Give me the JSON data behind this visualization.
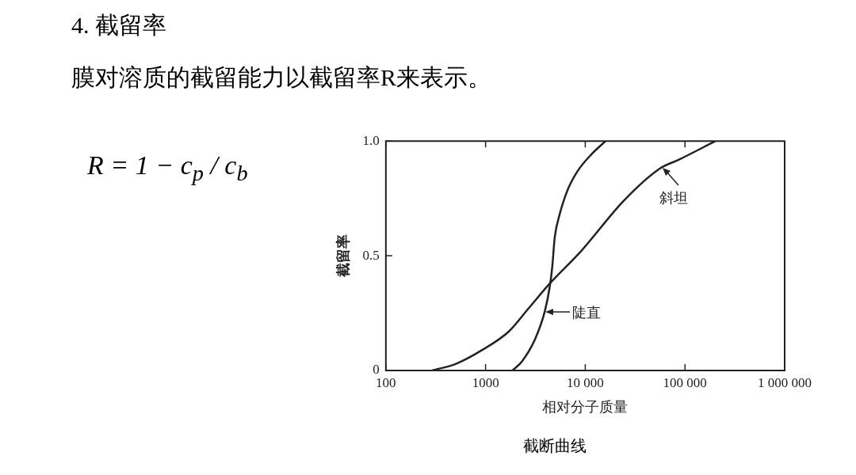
{
  "chart_data": {
    "type": "line",
    "title": "4. 截留率",
    "subtitle": "膜对溶质的截留能力以截留率R来表示。",
    "xlabel": "相对分子质量",
    "ylabel": "截留率",
    "log": "x",
    "xlim": [
      100,
      1000000
    ],
    "xticks": [
      100,
      1000,
      {
        "value": 10000,
        "label": "10 000"
      },
      {
        "value": 100000,
        "label": "100 000"
      },
      {
        "value": 1000000,
        "label": "1 000 000"
      }
    ],
    "ylim": [
      0,
      1
    ],
    "yticks": [
      0,
      0.5,
      {
        "value": 1,
        "label": "1.0"
      }
    ],
    "grid": false,
    "legend": false,
    "marker": "none",
    "line_style": "solid",
    "series": [
      {
        "color": "#222222",
        "x": [
          1860,
          2320,
          3160,
          3940,
          4420,
          4660,
          4940,
          5530,
          6700,
          8400,
          11400,
          16000
        ],
        "values": [
          0,
          0.04,
          0.14,
          0.26,
          0.37,
          0.45,
          0.58,
          0.68,
          0.79,
          0.87,
          0.94,
          1.0
        ]
      },
      {
        "color": "#222222",
        "x": [
          290,
          510,
          930,
          1710,
          2690,
          4420,
          9060,
          24300,
          55800,
          87900,
          202000
        ],
        "values": [
          0,
          0.03,
          0.09,
          0.17,
          0.27,
          0.38,
          0.52,
          0.74,
          0.88,
          0.92,
          1.0
        ]
      }
    ],
    "annotations": [
      "陡直",
      "斜坦",
      "R = 1 − c$_{p}$ / c$_{b}$",
      "截断曲线"
    ]
  }
}
